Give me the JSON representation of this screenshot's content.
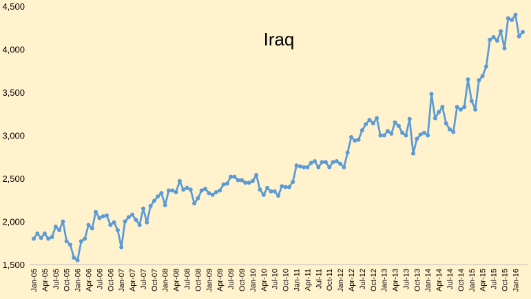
{
  "chart_data": {
    "type": "line",
    "title": "Iraq",
    "xlabel": "",
    "ylabel": "",
    "ylim": [
      1500,
      4500
    ],
    "y_ticks": [
      1500,
      2000,
      2500,
      3000,
      3500,
      4000,
      4500
    ],
    "y_tick_labels": [
      "1,500",
      "2,000",
      "2,500",
      "3,000",
      "3,500",
      "4,000",
      "4,500"
    ],
    "x_tick_labels": [
      "Jan-05",
      "Apr-05",
      "Jul-05",
      "Oct-05",
      "Jan-06",
      "Apr-06",
      "Jul-06",
      "Oct-06",
      "Jan-07",
      "Apr-07",
      "Jul-07",
      "Oct-07",
      "Jan-08",
      "Apr-08",
      "Jul-08",
      "Oct-08",
      "Jan-09",
      "Apr-09",
      "Jul-09",
      "Oct-09",
      "Jan-10",
      "Apr-10",
      "Jul-10",
      "Oct-10",
      "Jan-11",
      "Apr-11",
      "Jul-11",
      "Oct-11",
      "Jan-12",
      "Apr-12",
      "Jul-12",
      "Oct-12",
      "Jan-13",
      "Apr-13",
      "Jul-13",
      "Oct-13",
      "Jan-14",
      "Apr-14",
      "Jul-14",
      "Oct-14",
      "Jan-15",
      "Apr-15",
      "Jul-15",
      "Oct-15",
      "Jan-16"
    ],
    "grid": false,
    "legend": "none",
    "line_color": "#5B9BD5",
    "series": [
      {
        "values": [
          1800,
          1860,
          1810,
          1860,
          1800,
          1820,
          1940,
          1900,
          2000,
          1770,
          1730,
          1580,
          1550,
          1770,
          1800,
          1960,
          1920,
          2110,
          2040,
          2060,
          2070,
          1960,
          1990,
          1900,
          1700,
          2000,
          2050,
          2080,
          2020,
          1960,
          2150,
          1990,
          2180,
          2240,
          2290,
          2330,
          2190,
          2360,
          2360,
          2340,
          2470,
          2370,
          2390,
          2370,
          2210,
          2270,
          2360,
          2380,
          2330,
          2310,
          2340,
          2360,
          2430,
          2440,
          2520,
          2520,
          2480,
          2480,
          2450,
          2450,
          2470,
          2540,
          2370,
          2310,
          2390,
          2350,
          2350,
          2300,
          2410,
          2400,
          2400,
          2460,
          2650,
          2640,
          2630,
          2630,
          2680,
          2700,
          2630,
          2690,
          2690,
          2630,
          2690,
          2700,
          2670,
          2630,
          2800,
          2980,
          2940,
          2950,
          3060,
          3130,
          3180,
          3140,
          3200,
          3000,
          3000,
          3050,
          3020,
          3150,
          3110,
          3030,
          3000,
          3190,
          2790,
          2960,
          3010,
          3030,
          3000,
          3480,
          3200,
          3270,
          3330,
          3140,
          3070,
          3040,
          3330,
          3300,
          3330,
          3650,
          3400,
          3300,
          3640,
          3690,
          3800,
          4110,
          4140,
          4100,
          4210,
          4010,
          4360,
          4340,
          4400,
          4150,
          4200
        ]
      }
    ]
  }
}
